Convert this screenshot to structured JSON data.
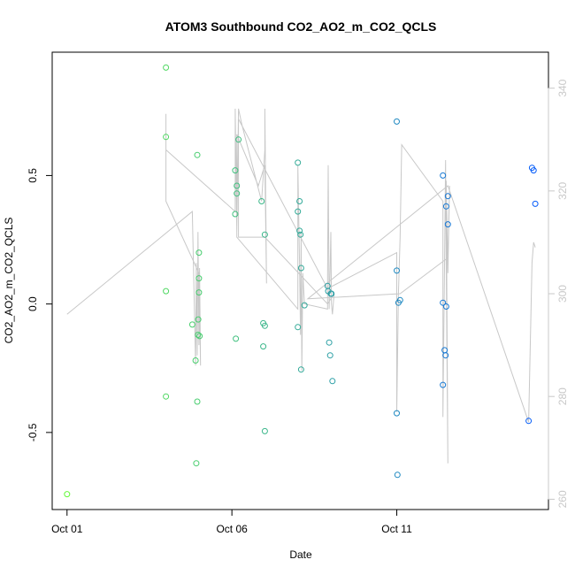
{
  "chart_data": {
    "type": "scatter",
    "title": "ATOM3 Southbound CO2_AO2_m_CO2_QCLS",
    "xlabel": "Date",
    "ylabel": "CO2_AO2_m_CO2_QCLS",
    "x_ticks": [
      "Oct 01",
      "Oct 06",
      "Oct 11"
    ],
    "x_tick_values": [
      0,
      5,
      10
    ],
    "xlim": [
      -0.45,
      14.6
    ],
    "y_ticks": [
      -0.5,
      0.0,
      0.5
    ],
    "y_tick_labels": [
      "-0.5",
      "0.0",
      "0.5"
    ],
    "ylim": [
      -0.8,
      0.98
    ],
    "y2_ticks": [
      260,
      280,
      300,
      320,
      340
    ],
    "y2lim": [
      258,
      347
    ],
    "grid": false,
    "legend": "none",
    "colors": {
      "line": "#c8c8c8",
      "axis_right": "#c8c8c8",
      "early": "#66ff33",
      "late": "#0055ff"
    },
    "series": [
      {
        "type": "points",
        "values": [
          {
            "x": 0.0,
            "y": -0.74
          },
          {
            "x": 3.0,
            "y": 0.92
          },
          {
            "x": 3.0,
            "y": 0.65
          },
          {
            "x": 3.0,
            "y": 0.05
          },
          {
            "x": 3.0,
            "y": -0.36
          },
          {
            "x": 3.8,
            "y": -0.08
          },
          {
            "x": 3.9,
            "y": -0.22
          },
          {
            "x": 3.92,
            "y": -0.62
          },
          {
            "x": 3.95,
            "y": -0.38
          },
          {
            "x": 3.95,
            "y": 0.58
          },
          {
            "x": 3.97,
            "y": -0.12
          },
          {
            "x": 3.98,
            "y": -0.06
          },
          {
            "x": 4.0,
            "y": 0.2
          },
          {
            "x": 4.0,
            "y": 0.1
          },
          {
            "x": 4.0,
            "y": 0.045
          },
          {
            "x": 4.02,
            "y": -0.125
          },
          {
            "x": 5.1,
            "y": 0.52
          },
          {
            "x": 5.1,
            "y": 0.35
          },
          {
            "x": 5.12,
            "y": -0.135
          },
          {
            "x": 5.15,
            "y": 0.46
          },
          {
            "x": 5.15,
            "y": 0.43
          },
          {
            "x": 5.2,
            "y": 0.64
          },
          {
            "x": 5.9,
            "y": 0.4
          },
          {
            "x": 5.95,
            "y": -0.075
          },
          {
            "x": 5.95,
            "y": -0.165
          },
          {
            "x": 6.0,
            "y": 0.27
          },
          {
            "x": 6.0,
            "y": -0.085
          },
          {
            "x": 6.0,
            "y": -0.495
          },
          {
            "x": 7.0,
            "y": 0.55
          },
          {
            "x": 7.0,
            "y": 0.36
          },
          {
            "x": 7.0,
            "y": -0.09
          },
          {
            "x": 7.05,
            "y": 0.285
          },
          {
            "x": 7.05,
            "y": 0.4
          },
          {
            "x": 7.08,
            "y": 0.27
          },
          {
            "x": 7.1,
            "y": 0.14
          },
          {
            "x": 7.1,
            "y": -0.255
          },
          {
            "x": 7.2,
            "y": -0.005
          },
          {
            "x": 7.9,
            "y": 0.07
          },
          {
            "x": 7.92,
            "y": 0.05
          },
          {
            "x": 7.95,
            "y": -0.15
          },
          {
            "x": 7.98,
            "y": -0.2
          },
          {
            "x": 8.0,
            "y": 0.04
          },
          {
            "x": 8.02,
            "y": 0.04
          },
          {
            "x": 8.05,
            "y": -0.3
          },
          {
            "x": 10.0,
            "y": 0.71
          },
          {
            "x": 10.0,
            "y": 0.13
          },
          {
            "x": 10.0,
            "y": -0.425
          },
          {
            "x": 10.02,
            "y": -0.665
          },
          {
            "x": 10.05,
            "y": 0.005
          },
          {
            "x": 10.1,
            "y": 0.015
          },
          {
            "x": 11.4,
            "y": 0.5
          },
          {
            "x": 11.4,
            "y": 0.005
          },
          {
            "x": 11.4,
            "y": -0.315
          },
          {
            "x": 11.45,
            "y": -0.18
          },
          {
            "x": 11.48,
            "y": -0.2
          },
          {
            "x": 11.5,
            "y": 0.38
          },
          {
            "x": 11.5,
            "y": -0.01
          },
          {
            "x": 11.55,
            "y": 0.42
          },
          {
            "x": 11.55,
            "y": 0.31
          },
          {
            "x": 14.0,
            "y": -0.455
          },
          {
            "x": 14.1,
            "y": 0.53
          },
          {
            "x": 14.15,
            "y": 0.52
          },
          {
            "x": 14.2,
            "y": 0.39
          }
        ]
      },
      {
        "type": "line",
        "axis": "right",
        "values": [
          {
            "x": 0.0,
            "y": 296
          },
          {
            "x": 3.8,
            "y": 316
          },
          {
            "x": 3.8,
            "y": 316
          },
          {
            "x": 3.9,
            "y": 286
          },
          {
            "x": 3.92,
            "y": 306
          },
          {
            "x": 3.95,
            "y": 288
          },
          {
            "x": 3.97,
            "y": 312
          },
          {
            "x": 4.0,
            "y": 290
          },
          {
            "x": 4.02,
            "y": 305
          },
          {
            "x": 4.05,
            "y": 286
          },
          {
            "x": 4.0,
            "y": 304
          },
          {
            "x": 3.0,
            "y": 318
          },
          {
            "x": 3.0,
            "y": 335
          },
          {
            "x": 3.0,
            "y": 321
          },
          {
            "x": 3.0,
            "y": 328
          },
          {
            "x": 5.1,
            "y": 316
          },
          {
            "x": 5.1,
            "y": 336
          },
          {
            "x": 5.15,
            "y": 312
          },
          {
            "x": 5.2,
            "y": 336
          },
          {
            "x": 5.3,
            "y": 333
          },
          {
            "x": 5.9,
            "y": 318
          },
          {
            "x": 5.95,
            "y": 323
          },
          {
            "x": 6.0,
            "y": 328
          },
          {
            "x": 6.0,
            "y": 336
          },
          {
            "x": 6.05,
            "y": 302
          },
          {
            "x": 6.0,
            "y": 325
          },
          {
            "x": 5.8,
            "y": 321
          },
          {
            "x": 5.15,
            "y": 331
          },
          {
            "x": 5.15,
            "y": 311
          },
          {
            "x": 7.0,
            "y": 297
          },
          {
            "x": 7.0,
            "y": 325
          },
          {
            "x": 7.05,
            "y": 306
          },
          {
            "x": 7.08,
            "y": 292
          },
          {
            "x": 7.1,
            "y": 312
          },
          {
            "x": 7.12,
            "y": 285
          },
          {
            "x": 7.15,
            "y": 304
          },
          {
            "x": 7.2,
            "y": 298
          },
          {
            "x": 7.9,
            "y": 297
          },
          {
            "x": 7.9,
            "y": 303
          },
          {
            "x": 7.92,
            "y": 325
          },
          {
            "x": 7.95,
            "y": 297
          },
          {
            "x": 7.98,
            "y": 305
          },
          {
            "x": 8.0,
            "y": 312
          },
          {
            "x": 8.02,
            "y": 298
          },
          {
            "x": 8.05,
            "y": 296
          },
          {
            "x": 8.1,
            "y": 300
          },
          {
            "x": 7.9,
            "y": 298
          },
          {
            "x": 6.0,
            "y": 311
          },
          {
            "x": 5.2,
            "y": 311
          },
          {
            "x": 5.2,
            "y": 334
          },
          {
            "x": 7.9,
            "y": 301
          },
          {
            "x": 10.0,
            "y": 308
          },
          {
            "x": 10.0,
            "y": 277
          },
          {
            "x": 10.05,
            "y": 300
          },
          {
            "x": 10.1,
            "y": 311
          },
          {
            "x": 10.15,
            "y": 329
          },
          {
            "x": 11.4,
            "y": 318
          },
          {
            "x": 11.4,
            "y": 276
          },
          {
            "x": 11.45,
            "y": 307
          },
          {
            "x": 11.48,
            "y": 326
          },
          {
            "x": 11.5,
            "y": 305
          },
          {
            "x": 11.55,
            "y": 267
          },
          {
            "x": 11.5,
            "y": 322
          },
          {
            "x": 11.55,
            "y": 304
          },
          {
            "x": 11.6,
            "y": 321
          },
          {
            "x": 11.55,
            "y": 307
          },
          {
            "x": 10.1,
            "y": 300
          },
          {
            "x": 7.3,
            "y": 299
          },
          {
            "x": 11.55,
            "y": 321
          },
          {
            "x": 14.0,
            "y": 275
          },
          {
            "x": 14.1,
            "y": 306
          },
          {
            "x": 14.15,
            "y": 310
          },
          {
            "x": 14.2,
            "y": 309
          }
        ]
      }
    ]
  }
}
